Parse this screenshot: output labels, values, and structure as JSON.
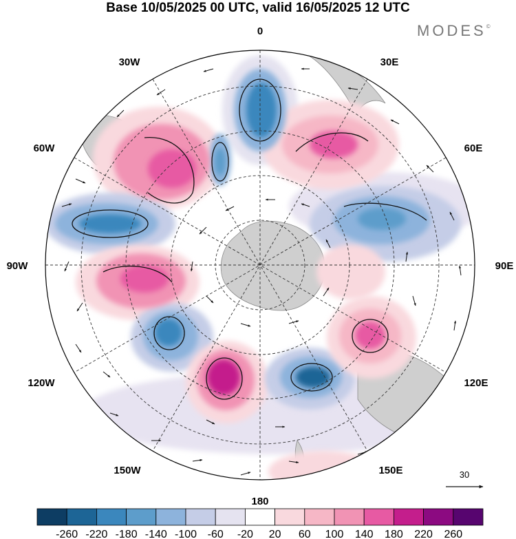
{
  "header": {
    "title": "Base 10/05/2025 00 UTC, valid 16/05/2025 12 UTC",
    "brand": "MODES",
    "brand_mark": "©"
  },
  "map": {
    "projection": "south-polar-stereographic",
    "longitude_labels": {
      "n": "0",
      "ne30": "30E",
      "ne60": "60E",
      "e": "90E",
      "se120": "120E",
      "se150": "150E",
      "s": "180",
      "sw150": "150W",
      "sw120": "120W",
      "w": "90W",
      "nw60": "60W",
      "nw30": "30W"
    },
    "field": "height anomaly with wind vectors",
    "anomaly_centers": [
      {
        "sign": "negative",
        "strength": -200,
        "lon": "5W"
      },
      {
        "sign": "negative",
        "strength": -180,
        "lon": "15W"
      },
      {
        "sign": "positive",
        "strength": 180,
        "lon": "40W"
      },
      {
        "sign": "positive",
        "strength": 160,
        "lon": "35E"
      },
      {
        "sign": "negative",
        "strength": -140,
        "lon": "75E"
      },
      {
        "sign": "negative",
        "strength": -180,
        "lon": "75W"
      },
      {
        "sign": "positive",
        "strength": 200,
        "lon": "100W"
      },
      {
        "sign": "negative",
        "strength": -200,
        "lon": "125W"
      },
      {
        "sign": "positive",
        "strength": 240,
        "lon": "165W"
      },
      {
        "sign": "negative",
        "strength": -200,
        "lon": "150E"
      },
      {
        "sign": "positive",
        "strength": 220,
        "lon": "115E"
      },
      {
        "sign": "positive",
        "strength": 80,
        "lon": "165E"
      }
    ],
    "colors": {
      "land": "#cfcfcf",
      "grid": "#333333"
    }
  },
  "reference_vector": {
    "value": "30"
  },
  "colorbar": {
    "ticks": [
      "-260",
      "-220",
      "-180",
      "-140",
      "-100",
      "-60",
      "-20",
      "20",
      "60",
      "100",
      "140",
      "180",
      "220",
      "260"
    ],
    "colors": [
      "#0d3d63",
      "#1d6596",
      "#3b87bd",
      "#5d9dcb",
      "#8db3dc",
      "#c5cde7",
      "#e5e3f0",
      "#ffffff",
      "#f9d9de",
      "#f6b7c6",
      "#f193b4",
      "#e75aa3",
      "#c41e8c",
      "#8c0a81",
      "#57056f"
    ]
  }
}
